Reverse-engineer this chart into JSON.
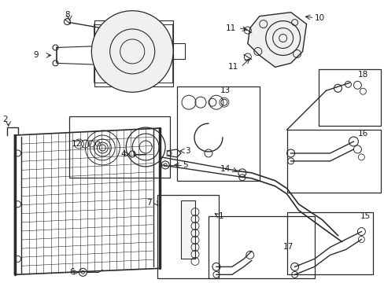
{
  "bg_color": "#ffffff",
  "lc": "#2a2a2a",
  "tc": "#1a1a1a",
  "fig_w": 4.89,
  "fig_h": 3.6,
  "dpi": 100,
  "label_fs": 7.5
}
